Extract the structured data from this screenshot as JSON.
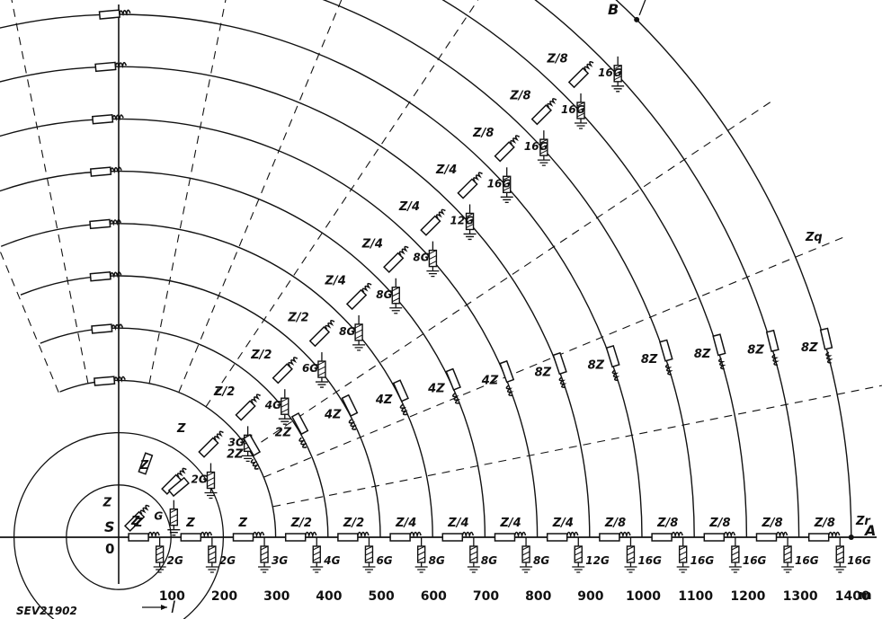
{
  "figure_id": "SEV21902",
  "origin_label_s": "S",
  "origin_label_0": "0",
  "distance_label": "l",
  "unit": "m",
  "point_a": "A",
  "point_b": "B",
  "z_r": "Zr",
  "z_q": "Zq",
  "axis_ticks": [
    "100",
    "200",
    "300",
    "400",
    "500",
    "600",
    "700",
    "800",
    "900",
    "1000",
    "1100",
    "1200",
    "1300",
    "1400"
  ],
  "bottom_impedances": [
    "Z",
    "Z",
    "Z",
    "Z",
    "Z/2",
    "Z/2",
    "Z/4",
    "Z/4",
    "Z/4",
    "Z/4",
    "Z/8",
    "Z/8",
    "Z/8",
    "Z/8",
    "Z/8"
  ],
  "bottom_shunts": [
    "2G",
    "2G",
    "3G",
    "4G",
    "6G",
    "8G",
    "8G",
    "8G",
    "12G",
    "16G",
    "16G",
    "16G",
    "16G",
    "16G"
  ],
  "diag_impedances": [
    "Z",
    "Z",
    "Z",
    "Z/2",
    "Z/2",
    "Z/2",
    "Z/4",
    "Z/4",
    "Z/4",
    "Z/4",
    "Z/8",
    "Z/8",
    "Z/8",
    "Z/8"
  ],
  "diag_shunts": [
    "G",
    "2G",
    "3G",
    "4G",
    "6G",
    "8G",
    "8G",
    "8G",
    "12G",
    "16G",
    "16G",
    "16G",
    "16G"
  ],
  "arc_impedances": [
    "2Z",
    "2Z",
    "4Z",
    "4Z",
    "4Z",
    "4Z",
    "8Z",
    "8Z",
    "8Z",
    "8Z",
    "8Z",
    "8Z"
  ]
}
